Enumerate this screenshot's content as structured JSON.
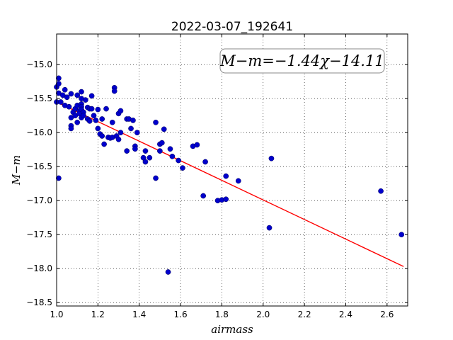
{
  "chart_data": {
    "type": "scatter",
    "title": "2022-03-07_192641",
    "xlabel": "airmass",
    "ylabel": "M−m",
    "xlim": [
      1.0,
      2.7
    ],
    "ylim": [
      -18.55,
      -14.55
    ],
    "y_inverted": true,
    "grid": true,
    "xticks": [
      1.0,
      1.2,
      1.4,
      1.6,
      1.8,
      2.0,
      2.2,
      2.4,
      2.6
    ],
    "xtick_labels": [
      "1.0",
      "1.2",
      "1.4",
      "1.6",
      "1.8",
      "2.0",
      "2.2",
      "2.4",
      "2.6"
    ],
    "yticks": [
      -15.0,
      -15.5,
      -16.0,
      -16.5,
      -17.0,
      -17.5,
      -18.0,
      -18.5
    ],
    "ytick_labels": [
      "−15.0",
      "−15.5",
      "−16.0",
      "−16.5",
      "−17.0",
      "−17.5",
      "−18.0",
      "−18.5"
    ],
    "annotation": "M−m=−1.44χ−14.11",
    "point_color": "#0000cc",
    "fit_color": "#ff0000",
    "fit": {
      "slope": -1.44,
      "intercept": -14.11,
      "x_start": 1.0,
      "x_end": 2.68
    },
    "points": [
      [
        1.0,
        -15.33
      ],
      [
        1.0,
        -15.55
      ],
      [
        1.01,
        -15.2
      ],
      [
        1.01,
        -15.28
      ],
      [
        1.01,
        -15.42
      ],
      [
        1.01,
        -16.67
      ],
      [
        1.02,
        -15.55
      ],
      [
        1.03,
        -15.45
      ],
      [
        1.04,
        -15.37
      ],
      [
        1.04,
        -15.6
      ],
      [
        1.05,
        -15.48
      ],
      [
        1.06,
        -15.62
      ],
      [
        1.07,
        -15.43
      ],
      [
        1.07,
        -15.78
      ],
      [
        1.07,
        -15.9
      ],
      [
        1.07,
        -15.94
      ],
      [
        1.08,
        -15.7
      ],
      [
        1.09,
        -15.65
      ],
      [
        1.09,
        -15.75
      ],
      [
        1.1,
        -15.45
      ],
      [
        1.1,
        -15.6
      ],
      [
        1.1,
        -15.85
      ],
      [
        1.11,
        -15.68
      ],
      [
        1.11,
        -15.72
      ],
      [
        1.12,
        -15.4
      ],
      [
        1.12,
        -15.5
      ],
      [
        1.12,
        -15.58
      ],
      [
        1.12,
        -15.62
      ],
      [
        1.12,
        -15.66
      ],
      [
        1.12,
        -15.78
      ],
      [
        1.13,
        -15.7
      ],
      [
        1.13,
        -15.75
      ],
      [
        1.14,
        -15.52
      ],
      [
        1.15,
        -15.63
      ],
      [
        1.15,
        -15.8
      ],
      [
        1.16,
        -15.65
      ],
      [
        1.16,
        -15.83
      ],
      [
        1.17,
        -15.46
      ],
      [
        1.17,
        -15.65
      ],
      [
        1.18,
        -15.75
      ],
      [
        1.19,
        -15.82
      ],
      [
        1.2,
        -15.66
      ],
      [
        1.2,
        -15.94
      ],
      [
        1.21,
        -16.02
      ],
      [
        1.22,
        -15.8
      ],
      [
        1.22,
        -16.05
      ],
      [
        1.23,
        -16.17
      ],
      [
        1.24,
        -15.65
      ],
      [
        1.25,
        -16.07
      ],
      [
        1.26,
        -16.08
      ],
      [
        1.27,
        -15.85
      ],
      [
        1.27,
        -16.07
      ],
      [
        1.28,
        -15.34
      ],
      [
        1.28,
        -15.39
      ],
      [
        1.29,
        -16.05
      ],
      [
        1.3,
        -16.1
      ],
      [
        1.3,
        -15.72
      ],
      [
        1.31,
        -15.68
      ],
      [
        1.31,
        -16.0
      ],
      [
        1.34,
        -15.8
      ],
      [
        1.34,
        -16.27
      ],
      [
        1.35,
        -15.8
      ],
      [
        1.36,
        -15.94
      ],
      [
        1.37,
        -15.82
      ],
      [
        1.38,
        -16.2
      ],
      [
        1.38,
        -16.24
      ],
      [
        1.39,
        -16.0
      ],
      [
        1.42,
        -16.37
      ],
      [
        1.43,
        -16.43
      ],
      [
        1.43,
        -16.27
      ],
      [
        1.45,
        -16.37
      ],
      [
        1.48,
        -15.85
      ],
      [
        1.48,
        -16.67
      ],
      [
        1.5,
        -16.17
      ],
      [
        1.5,
        -16.27
      ],
      [
        1.51,
        -16.15
      ],
      [
        1.52,
        -15.95
      ],
      [
        1.54,
        -18.05
      ],
      [
        1.55,
        -16.24
      ],
      [
        1.56,
        -16.35
      ],
      [
        1.59,
        -16.41
      ],
      [
        1.61,
        -16.52
      ],
      [
        1.66,
        -16.2
      ],
      [
        1.68,
        -16.18
      ],
      [
        1.71,
        -16.93
      ],
      [
        1.72,
        -16.43
      ],
      [
        1.78,
        -17.0
      ],
      [
        1.8,
        -16.99
      ],
      [
        1.82,
        -16.64
      ],
      [
        1.82,
        -16.98
      ],
      [
        1.88,
        -16.71
      ],
      [
        2.03,
        -17.4
      ],
      [
        2.04,
        -16.38
      ],
      [
        2.57,
        -16.86
      ],
      [
        2.67,
        -17.5
      ]
    ]
  }
}
